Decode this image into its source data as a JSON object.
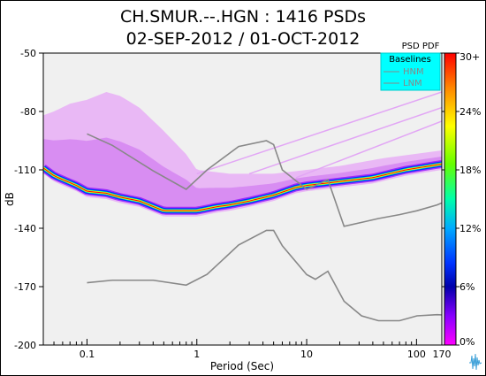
{
  "chart_data": {
    "type": "heatmap",
    "title_line1": "CH.SMUR.--.HGN : 1416 PSDs",
    "title_line2": "02-SEP-2012 / 01-OCT-2012",
    "xlabel": "Period (Sec)",
    "ylabel": "dB",
    "x_scale": "log",
    "xlim": [
      0.04,
      170
    ],
    "ylim": [
      -200,
      -50
    ],
    "x_ticks": [
      {
        "value": 0.1,
        "label": "0.1"
      },
      {
        "value": 1,
        "label": "1"
      },
      {
        "value": 10,
        "label": "10"
      },
      {
        "value": 100,
        "label": "100"
      },
      {
        "value": 170,
        "label": "170"
      }
    ],
    "y_ticks": [
      -50,
      -80,
      -110,
      -140,
      -170,
      -200
    ],
    "colorbar": {
      "label": "PSD PDF",
      "ticks": [
        "30+",
        "24%",
        "18%",
        "12%",
        "6%",
        "0%"
      ],
      "colors": [
        "#ff0000",
        "#ff8800",
        "#ffff00",
        "#66ff00",
        "#00ffaa",
        "#00aaff",
        "#0033ff",
        "#0000aa",
        "#8800ff",
        "#ff00ff"
      ]
    },
    "legend": {
      "title": "Baselines",
      "placement": "top-right",
      "entries": [
        {
          "name": "HNM",
          "color": "#888888"
        },
        {
          "name": "LNM",
          "color": "#888888"
        }
      ]
    },
    "series": [
      {
        "name": "HNM",
        "x": [
          0.1,
          0.17,
          0.4,
          0.8,
          1.24,
          2.4,
          4.3,
          5.0,
          6.0,
          10.0,
          12.0,
          15.6,
          21.9,
          31.6,
          45.0,
          70.0,
          101.0,
          154.0,
          170.0
        ],
        "y": [
          -91.5,
          -97.4,
          -110.5,
          -120.0,
          -110.0,
          -98.0,
          -95.0,
          -97.0,
          -110.0,
          -120.0,
          -118.0,
          -115.0,
          -139.0,
          -137.0,
          -135.0,
          -133.0,
          -131.0,
          -128.0,
          -127.0
        ]
      },
      {
        "name": "LNM",
        "x": [
          0.1,
          0.17,
          0.4,
          0.8,
          1.24,
          2.4,
          4.3,
          5.0,
          6.0,
          10.0,
          12.0,
          15.6,
          21.9,
          31.6,
          45.0,
          70.0,
          101.0,
          154.0,
          170.0
        ],
        "y": [
          -168.0,
          -166.7,
          -166.7,
          -169.2,
          -163.7,
          -148.6,
          -141.1,
          -141.1,
          -149.0,
          -163.8,
          -166.2,
          -162.1,
          -177.5,
          -185.0,
          -187.5,
          -187.5,
          -185.0,
          -184.4,
          -184.5
        ]
      }
    ],
    "density_ridge": {
      "x": [
        0.04,
        0.05,
        0.06,
        0.08,
        0.1,
        0.15,
        0.2,
        0.3,
        0.5,
        0.8,
        1.0,
        1.5,
        2,
        3,
        5,
        8,
        10,
        20,
        40,
        80,
        170
      ],
      "y": [
        -109,
        -113,
        -115,
        -118,
        -121,
        -122,
        -124,
        -126,
        -131,
        -131,
        -131,
        -129,
        -128,
        -126,
        -123,
        -119,
        -118,
        -116,
        -114,
        -110,
        -107
      ]
    },
    "upper_envelope": {
      "x": [
        0.04,
        0.05,
        0.07,
        0.1,
        0.15,
        0.2,
        0.3,
        0.5,
        0.8,
        1.0,
        2,
        5,
        10,
        20,
        50,
        170
      ],
      "y": [
        -82,
        -80,
        -76,
        -74,
        -70,
        -72,
        -78,
        -90,
        -102,
        -110,
        -112,
        -112,
        -110,
        -108,
        -104,
        -100
      ]
    }
  }
}
